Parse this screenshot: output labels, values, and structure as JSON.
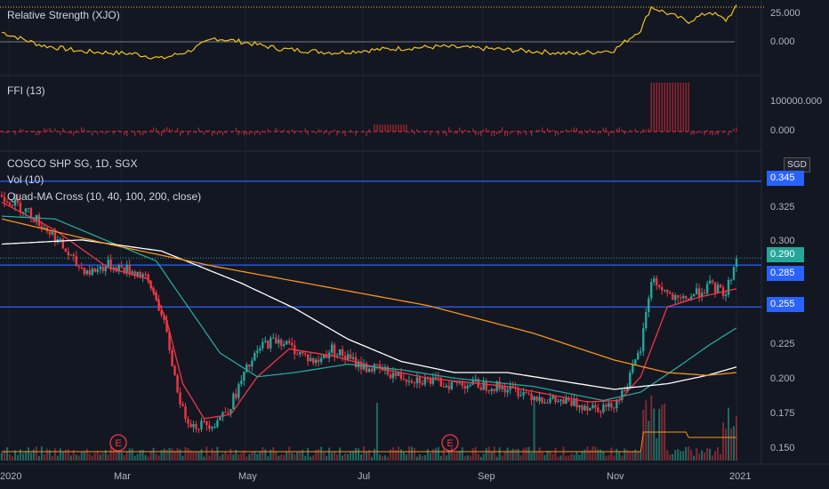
{
  "chart_data": {
    "type": "candlestick",
    "symbol_title": "COSCO SHP SG, 1D, SGX",
    "currency": "SGD",
    "indicators": {
      "volume_label": "Vol (10)",
      "ma_label": "Quad-MA Cross (10, 40, 100, 200, close)",
      "rs_label": "Relative Strength (XJO)",
      "ffi_label": "FFI (13)"
    },
    "price_axis": {
      "ticks": [
        "0.325",
        "0.300",
        "0.225",
        "0.200",
        "0.175",
        "0.150"
      ],
      "range": [
        0.145,
        0.357
      ]
    },
    "rs_axis": {
      "ticks": [
        "25.000",
        "0.000"
      ]
    },
    "ffi_axis": {
      "ticks": [
        "100000.000",
        "0.000"
      ]
    },
    "x_axis": {
      "ticks": [
        "2020",
        "Mar",
        "May",
        "Jul",
        "Sep",
        "Nov",
        "2021"
      ]
    },
    "horizontal_lines": [
      {
        "value": 0.345,
        "label": "0.345"
      },
      {
        "value": 0.285,
        "label": "0.285"
      },
      {
        "value": 0.255,
        "label": "0.255"
      }
    ],
    "last_price": {
      "value": 0.29,
      "label": "0.290"
    },
    "earnings_markers": [
      "E",
      "E"
    ],
    "price_path": [
      [
        0,
        0.335
      ],
      [
        10,
        0.323
      ],
      [
        20,
        0.305
      ],
      [
        28,
        0.285
      ],
      [
        33,
        0.28
      ],
      [
        40,
        0.285
      ],
      [
        47,
        0.282
      ],
      [
        53,
        0.278
      ],
      [
        58,
        0.262
      ],
      [
        62,
        0.235
      ],
      [
        65,
        0.205
      ],
      [
        68,
        0.18
      ],
      [
        72,
        0.17
      ],
      [
        80,
        0.172
      ],
      [
        86,
        0.185
      ],
      [
        92,
        0.21
      ],
      [
        98,
        0.228
      ],
      [
        104,
        0.232
      ],
      [
        112,
        0.222
      ],
      [
        118,
        0.215
      ],
      [
        124,
        0.225
      ],
      [
        130,
        0.218
      ],
      [
        136,
        0.212
      ],
      [
        142,
        0.21
      ],
      [
        150,
        0.205
      ],
      [
        158,
        0.203
      ],
      [
        166,
        0.2
      ],
      [
        176,
        0.2
      ],
      [
        186,
        0.198
      ],
      [
        196,
        0.194
      ],
      [
        206,
        0.188
      ],
      [
        214,
        0.186
      ],
      [
        222,
        0.184
      ],
      [
        228,
        0.183
      ],
      [
        232,
        0.19
      ],
      [
        236,
        0.205
      ],
      [
        240,
        0.225
      ],
      [
        244,
        0.275
      ],
      [
        248,
        0.268
      ],
      [
        254,
        0.258
      ],
      [
        260,
        0.264
      ],
      [
        266,
        0.27
      ],
      [
        272,
        0.265
      ],
      [
        276,
        0.29
      ]
    ],
    "ma_series": [
      {
        "color": "#f23645",
        "values": [
          [
            0,
            0.33
          ],
          [
            20,
            0.31
          ],
          [
            40,
            0.283
          ],
          [
            55,
            0.275
          ],
          [
            62,
            0.245
          ],
          [
            68,
            0.2
          ],
          [
            76,
            0.175
          ],
          [
            86,
            0.178
          ],
          [
            96,
            0.205
          ],
          [
            108,
            0.225
          ],
          [
            124,
            0.22
          ],
          [
            140,
            0.212
          ],
          [
            160,
            0.204
          ],
          [
            190,
            0.198
          ],
          [
            220,
            0.187
          ],
          [
            232,
            0.188
          ],
          [
            240,
            0.205
          ],
          [
            250,
            0.255
          ],
          [
            262,
            0.262
          ],
          [
            276,
            0.268
          ]
        ]
      },
      {
        "color": "#26a69a",
        "values": [
          [
            0,
            0.32
          ],
          [
            20,
            0.318
          ],
          [
            40,
            0.302
          ],
          [
            58,
            0.288
          ],
          [
            70,
            0.255
          ],
          [
            82,
            0.222
          ],
          [
            96,
            0.205
          ],
          [
            110,
            0.208
          ],
          [
            130,
            0.214
          ],
          [
            150,
            0.21
          ],
          [
            170,
            0.204
          ],
          [
            200,
            0.198
          ],
          [
            226,
            0.188
          ],
          [
            240,
            0.194
          ],
          [
            254,
            0.212
          ],
          [
            266,
            0.228
          ],
          [
            276,
            0.24
          ]
        ]
      },
      {
        "color": "#ffffff",
        "values": [
          [
            0,
            0.3
          ],
          [
            30,
            0.303
          ],
          [
            60,
            0.295
          ],
          [
            90,
            0.272
          ],
          [
            110,
            0.254
          ],
          [
            130,
            0.232
          ],
          [
            150,
            0.216
          ],
          [
            170,
            0.208
          ],
          [
            190,
            0.208
          ],
          [
            210,
            0.202
          ],
          [
            230,
            0.196
          ],
          [
            250,
            0.2
          ],
          [
            265,
            0.206
          ],
          [
            276,
            0.212
          ]
        ]
      },
      {
        "color": "#f7931a",
        "values": [
          [
            0,
            0.318
          ],
          [
            40,
            0.3
          ],
          [
            80,
            0.284
          ],
          [
            120,
            0.27
          ],
          [
            160,
            0.256
          ],
          [
            200,
            0.236
          ],
          [
            230,
            0.217
          ],
          [
            250,
            0.208
          ],
          [
            265,
            0.206
          ],
          [
            276,
            0.208
          ]
        ]
      }
    ],
    "rs_path": [
      [
        0,
        8
      ],
      [
        15,
        -3
      ],
      [
        30,
        -8
      ],
      [
        50,
        -10
      ],
      [
        60,
        -14
      ],
      [
        70,
        -8
      ],
      [
        80,
        3
      ],
      [
        90,
        0
      ],
      [
        105,
        -6
      ],
      [
        125,
        -9
      ],
      [
        145,
        -6
      ],
      [
        165,
        -4
      ],
      [
        185,
        -6
      ],
      [
        200,
        -8
      ],
      [
        215,
        -10
      ],
      [
        230,
        -7
      ],
      [
        240,
        10
      ],
      [
        244,
        29
      ],
      [
        252,
        22
      ],
      [
        258,
        17
      ],
      [
        266,
        25
      ],
      [
        272,
        18
      ],
      [
        276,
        29
      ]
    ],
    "ffi_positive_ranges": [
      [
        140,
        152,
        5000
      ],
      [
        244,
        258,
        110000
      ]
    ]
  }
}
